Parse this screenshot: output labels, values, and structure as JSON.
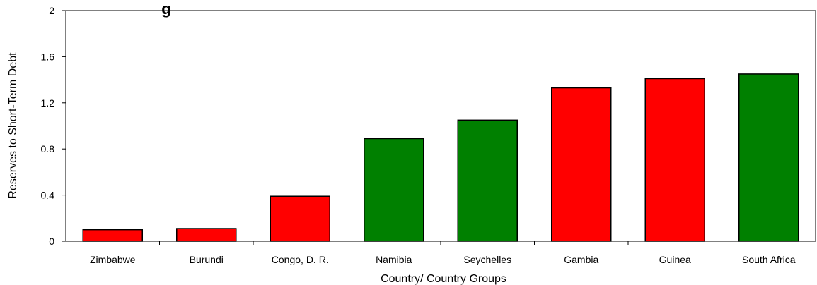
{
  "chart_data": {
    "type": "bar",
    "title": "g",
    "xlabel": "Country/ Country Groups",
    "ylabel": "Reserves to Short-Term Debt",
    "categories": [
      "Zimbabwe",
      "Burundi",
      "Congo, D. R.",
      "Namibia",
      "Seychelles",
      "Gambia",
      "Guinea",
      "South Africa"
    ],
    "values": [
      0.1,
      0.11,
      0.39,
      0.89,
      1.05,
      1.33,
      1.41,
      1.45
    ],
    "bar_colors": [
      "#ff0000",
      "#ff0000",
      "#ff0000",
      "#008000",
      "#008000",
      "#ff0000",
      "#ff0000",
      "#008000"
    ],
    "yticks": [
      "0",
      "0.4",
      "0.8",
      "1.2",
      "1.6",
      "2"
    ],
    "ylim": [
      0,
      2
    ],
    "grid": false,
    "legend": "none"
  }
}
